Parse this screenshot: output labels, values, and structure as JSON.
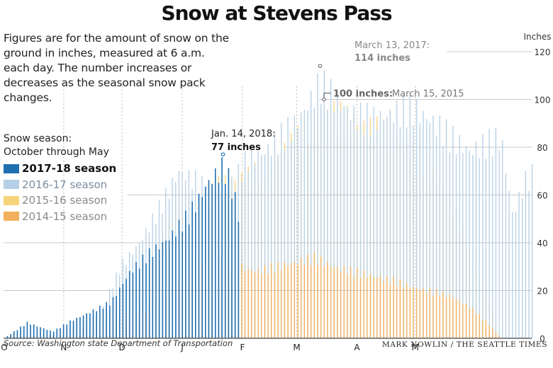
{
  "header": {
    "title": "Snow at Stevens Pass",
    "description": "Figures are for the amount of snow on the ground in inches, measured at 6 a.m. each day. The number increases or decreases as the seasonal snow pack changes."
  },
  "legend": {
    "title_line1": "Snow season:",
    "title_line2": "October through May",
    "items": [
      {
        "label": "2017-18 season",
        "color": "#1f6fb3"
      },
      {
        "label": "2016-17 season",
        "color": "#b5cfe6"
      },
      {
        "label": "2015-16 season",
        "color": "#f5d47a"
      },
      {
        "label": "2014-15 season",
        "color": "#f2b05c"
      }
    ]
  },
  "footer": {
    "source": "Source: Washington state Department of Transportation",
    "credit": "MARK NOWLIN / THE SEATTLE TIMES"
  },
  "annotations": {
    "a2017_date": "March 13, 2017:",
    "a2017_value": "114 inches",
    "a2015_value": "100 inches:",
    "a2015_date": "March 15, 2015",
    "a2018_date": "Jan. 14, 2018:",
    "a2018_value": "77 inches"
  },
  "chart_data": {
    "type": "bar",
    "ylabel": "Inches",
    "ylim": [
      0,
      120
    ],
    "yticks": [
      0,
      20,
      40,
      60,
      80,
      100,
      120
    ],
    "month_labels": [
      "O",
      "N",
      "D",
      "J",
      "F",
      "M",
      "A",
      "M"
    ],
    "x_unit": "days since October 1",
    "series": [
      {
        "name": "2014-15 season",
        "color": "#f2b05c",
        "points": [
          [
            0,
            0
          ],
          [
            40,
            3
          ],
          [
            55,
            6
          ],
          [
            75,
            14
          ],
          [
            90,
            24
          ],
          [
            105,
            40
          ],
          [
            115,
            34
          ],
          [
            130,
            30
          ],
          [
            145,
            33
          ],
          [
            160,
            36
          ],
          [
            170,
            32
          ],
          [
            180,
            30
          ],
          [
            190,
            28
          ],
          [
            200,
            26
          ],
          [
            210,
            23
          ],
          [
            220,
            21
          ],
          [
            230,
            19
          ],
          [
            240,
            14
          ],
          [
            250,
            6
          ],
          [
            256,
            0
          ]
        ]
      },
      {
        "name": "2015-16 season",
        "color": "#f5d47a",
        "points": [
          [
            0,
            0
          ],
          [
            30,
            2
          ],
          [
            45,
            8
          ],
          [
            55,
            13
          ],
          [
            70,
            25
          ],
          [
            80,
            44
          ],
          [
            85,
            50
          ],
          [
            90,
            65
          ],
          [
            100,
            58
          ],
          [
            110,
            68
          ],
          [
            120,
            72
          ],
          [
            130,
            74
          ],
          [
            140,
            82
          ],
          [
            150,
            88
          ],
          [
            160,
            95
          ],
          [
            170,
            100
          ],
          [
            180,
            98
          ],
          [
            190,
            94
          ],
          [
            200,
            90
          ],
          [
            210,
            84
          ],
          [
            220,
            75
          ],
          [
            230,
            62
          ],
          [
            240,
            38
          ],
          [
            250,
            18
          ],
          [
            256,
            0
          ]
        ]
      },
      {
        "name": "2016-17 season",
        "color": "#b5cfe6",
        "points": [
          [
            0,
            0
          ],
          [
            30,
            3
          ],
          [
            40,
            8
          ],
          [
            50,
            12
          ],
          [
            60,
            32
          ],
          [
            70,
            43
          ],
          [
            80,
            58
          ],
          [
            90,
            75
          ],
          [
            100,
            70
          ],
          [
            110,
            60
          ],
          [
            120,
            72
          ],
          [
            125,
            80
          ],
          [
            135,
            84
          ],
          [
            140,
            88
          ],
          [
            150,
            96
          ],
          [
            163,
            114
          ],
          [
            170,
            108
          ],
          [
            180,
            100
          ],
          [
            190,
            98
          ],
          [
            200,
            101
          ],
          [
            210,
            103
          ],
          [
            220,
            98
          ],
          [
            230,
            90
          ],
          [
            240,
            84
          ],
          [
            256,
            90
          ],
          [
            262,
            55
          ],
          [
            268,
            70
          ],
          [
            272,
            73
          ]
        ]
      },
      {
        "name": "2017-18 season",
        "color": "#1f6fb3",
        "points": [
          [
            0,
            0
          ],
          [
            12,
            7
          ],
          [
            25,
            3
          ],
          [
            35,
            8
          ],
          [
            45,
            12
          ],
          [
            55,
            16
          ],
          [
            65,
            30
          ],
          [
            75,
            38
          ],
          [
            85,
            45
          ],
          [
            95,
            55
          ],
          [
            100,
            62
          ],
          [
            105,
            70
          ],
          [
            110,
            74
          ],
          [
            113,
            77
          ],
          [
            118,
            66
          ],
          [
            122,
            50
          ]
        ]
      }
    ]
  }
}
